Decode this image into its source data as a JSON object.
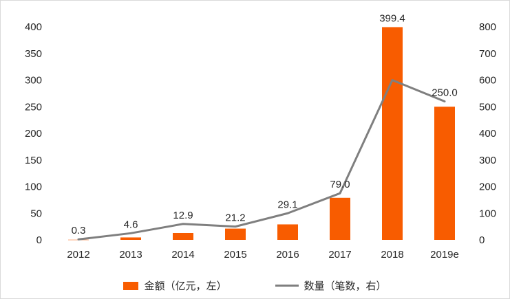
{
  "chart_data": {
    "type": "bar+line combo",
    "categories": [
      "2012",
      "2013",
      "2014",
      "2015",
      "2016",
      "2017",
      "2018",
      "2019e"
    ],
    "series": [
      {
        "name": "金额（亿元，左）",
        "type": "bar",
        "axis": "left",
        "values": [
          0.3,
          4.6,
          12.9,
          21.2,
          29.1,
          79.0,
          399.4,
          250.0
        ],
        "labels": [
          "0.3",
          "4.6",
          "12.9",
          "21.2",
          "29.1",
          "79.0",
          "399.4",
          "250.0"
        ],
        "color": "#f85c00"
      },
      {
        "name": "数量（笔数，右）",
        "type": "line",
        "axis": "right",
        "values": [
          2,
          25,
          60,
          50,
          100,
          175,
          600,
          520
        ],
        "color": "#7f7f7f"
      }
    ],
    "left_axis": {
      "min": 0,
      "max": 400,
      "step": 50,
      "ticks": [
        "0",
        "50",
        "100",
        "150",
        "200",
        "250",
        "300",
        "350",
        "400"
      ]
    },
    "right_axis": {
      "min": 0,
      "max": 800,
      "step": 100,
      "ticks": [
        "0",
        "100",
        "200",
        "300",
        "400",
        "500",
        "600",
        "700",
        "800"
      ]
    },
    "title": "",
    "grid": false,
    "legend_position": "bottom"
  },
  "style": {
    "text_color": "#262626",
    "background": "#ffffff"
  }
}
